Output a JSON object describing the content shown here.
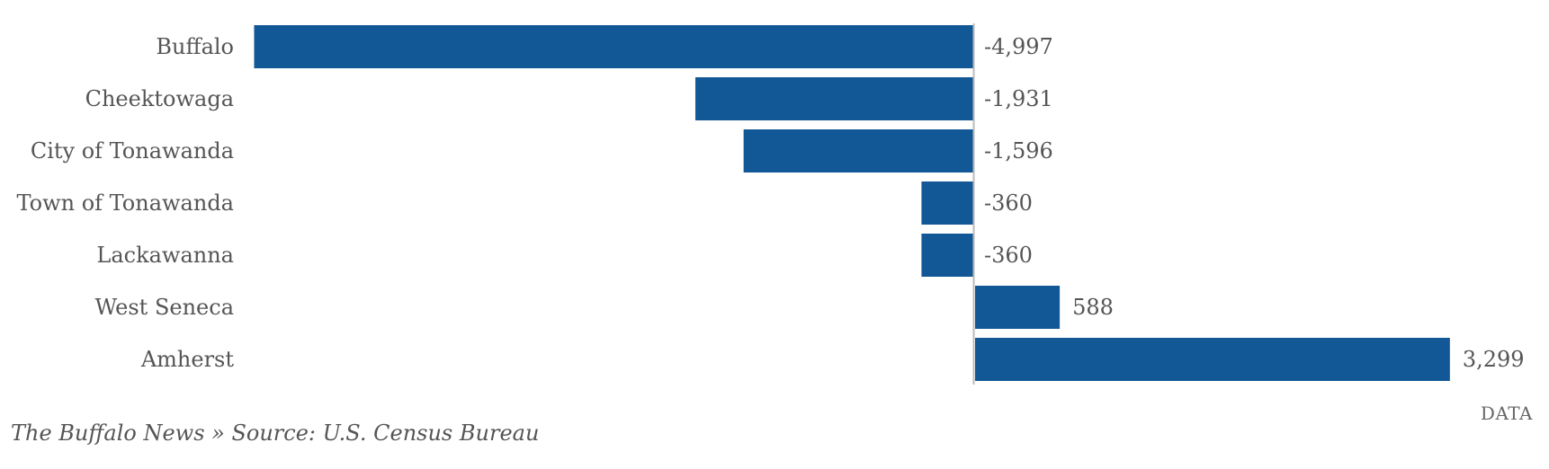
{
  "chart_data": {
    "type": "bar",
    "orientation": "horizontal",
    "categories": [
      "Buffalo",
      "Cheektowaga",
      "City of Tonawanda",
      "Town of Tonawanda",
      "Lackawanna",
      "West Seneca",
      "Amherst"
    ],
    "values": [
      -4997,
      -1931,
      -1596,
      -360,
      -360,
      588,
      3299
    ],
    "value_labels": [
      "-4,997",
      "-1,931",
      "-1,596",
      "-360",
      "-360",
      "588",
      "3,299"
    ],
    "grid": false,
    "bar_color": "#135896",
    "zero_line_color": "#bbbbbb"
  },
  "footer": {
    "source": "The Buffalo News » Source: U.S. Census Bureau",
    "data_link": "DATA"
  }
}
